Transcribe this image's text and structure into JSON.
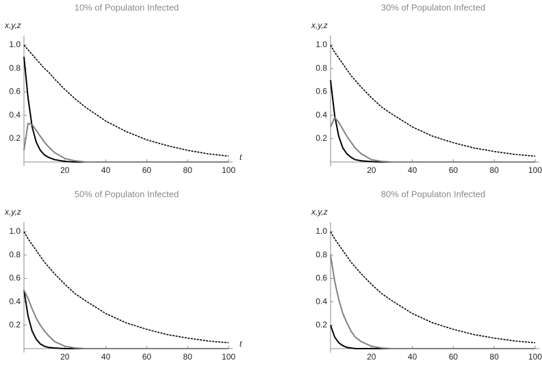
{
  "chart_data": [
    {
      "type": "line",
      "title": "10% of Populaton Infected",
      "ylabel": "x,y,z",
      "xlabel": "t",
      "x": [
        0,
        2,
        4,
        6,
        8,
        10,
        12,
        15,
        20,
        25,
        30,
        40,
        50,
        60,
        70,
        80,
        90,
        100
      ],
      "series": [
        {
          "color": "#000000",
          "dashed": true,
          "values": [
            1.0,
            0.96,
            0.92,
            0.88,
            0.84,
            0.8,
            0.77,
            0.71,
            0.62,
            0.54,
            0.47,
            0.35,
            0.26,
            0.19,
            0.14,
            0.1,
            0.07,
            0.05
          ]
        },
        {
          "color": "#000000",
          "dashed": false,
          "values": [
            0.9,
            0.55,
            0.3,
            0.17,
            0.1,
            0.06,
            0.04,
            0.02,
            0.005,
            0,
            0,
            0,
            0,
            0,
            0,
            0,
            0,
            0
          ]
        },
        {
          "color": "#808080",
          "dashed": false,
          "values": [
            0.1,
            0.33,
            0.32,
            0.27,
            0.22,
            0.17,
            0.13,
            0.08,
            0.03,
            0.01,
            0,
            0,
            0,
            0,
            0,
            0,
            0,
            0
          ]
        }
      ],
      "xlim": [
        0,
        100
      ],
      "ylim": [
        0,
        1.05
      ],
      "xticks": [
        20,
        40,
        60,
        80,
        100
      ],
      "yticks": [
        0.2,
        0.4,
        0.6,
        0.8,
        {
          "value": 1,
          "label": "1.0"
        }
      ]
    },
    {
      "type": "line",
      "title": "30% of Populaton Infected",
      "ylabel": "x,y,z",
      "x": [
        0,
        2,
        4,
        6,
        8,
        10,
        12,
        15,
        20,
        25,
        30,
        40,
        50,
        60,
        70,
        80,
        90,
        100
      ],
      "series": [
        {
          "color": "#000000",
          "dashed": true,
          "values": [
            1.0,
            0.94,
            0.89,
            0.84,
            0.79,
            0.74,
            0.7,
            0.64,
            0.55,
            0.47,
            0.41,
            0.3,
            0.22,
            0.165,
            0.12,
            0.09,
            0.065,
            0.05
          ]
        },
        {
          "color": "#000000",
          "dashed": false,
          "values": [
            0.7,
            0.4,
            0.22,
            0.12,
            0.07,
            0.04,
            0.02,
            0.01,
            0.003,
            0,
            0,
            0,
            0,
            0,
            0,
            0,
            0,
            0
          ]
        },
        {
          "color": "#808080",
          "dashed": false,
          "values": [
            0.3,
            0.38,
            0.34,
            0.28,
            0.22,
            0.17,
            0.12,
            0.07,
            0.02,
            0.005,
            0,
            0,
            0,
            0,
            0,
            0,
            0,
            0
          ]
        }
      ],
      "xlim": [
        0,
        100
      ],
      "ylim": [
        0,
        1.05
      ],
      "xticks": [
        20,
        40,
        60,
        80,
        100
      ],
      "yticks": [
        0.2,
        0.4,
        0.6,
        0.8,
        {
          "value": 1,
          "label": "1.0"
        }
      ]
    },
    {
      "type": "line",
      "title": "50% of Populaton Infected",
      "ylabel": "x,y,z",
      "xlabel": "t",
      "x": [
        0,
        2,
        4,
        6,
        8,
        10,
        12,
        15,
        20,
        25,
        30,
        40,
        50,
        60,
        70,
        80,
        90,
        100
      ],
      "series": [
        {
          "color": "#000000",
          "dashed": true,
          "values": [
            1.0,
            0.94,
            0.89,
            0.84,
            0.79,
            0.74,
            0.7,
            0.64,
            0.55,
            0.47,
            0.41,
            0.3,
            0.22,
            0.165,
            0.12,
            0.09,
            0.065,
            0.05
          ]
        },
        {
          "color": "#000000",
          "dashed": false,
          "values": [
            0.5,
            0.28,
            0.15,
            0.08,
            0.04,
            0.02,
            0.01,
            0.005,
            0,
            0,
            0,
            0,
            0,
            0,
            0,
            0,
            0,
            0
          ]
        },
        {
          "color": "#808080",
          "dashed": false,
          "values": [
            0.5,
            0.43,
            0.34,
            0.26,
            0.2,
            0.15,
            0.11,
            0.06,
            0.02,
            0.005,
            0,
            0,
            0,
            0,
            0,
            0,
            0,
            0
          ]
        }
      ],
      "xlim": [
        0,
        100
      ],
      "ylim": [
        0,
        1.05
      ],
      "xticks": [
        20,
        40,
        60,
        80,
        100
      ],
      "yticks": [
        0.2,
        0.4,
        0.6,
        0.8,
        {
          "value": 1,
          "label": "1.0"
        }
      ]
    },
    {
      "type": "line",
      "title": "80% of Populaton Infected",
      "ylabel": "x,y,z",
      "x": [
        0,
        2,
        4,
        6,
        8,
        10,
        12,
        15,
        20,
        25,
        30,
        40,
        50,
        60,
        70,
        80,
        90,
        100
      ],
      "series": [
        {
          "color": "#000000",
          "dashed": true,
          "values": [
            1.0,
            0.94,
            0.89,
            0.84,
            0.79,
            0.74,
            0.7,
            0.64,
            0.55,
            0.47,
            0.41,
            0.3,
            0.22,
            0.165,
            0.12,
            0.09,
            0.065,
            0.05
          ]
        },
        {
          "color": "#000000",
          "dashed": false,
          "values": [
            0.2,
            0.1,
            0.05,
            0.025,
            0.01,
            0.005,
            0,
            0,
            0,
            0,
            0,
            0,
            0,
            0,
            0,
            0,
            0,
            0
          ]
        },
        {
          "color": "#808080",
          "dashed": false,
          "values": [
            0.8,
            0.58,
            0.42,
            0.3,
            0.22,
            0.15,
            0.1,
            0.06,
            0.02,
            0.005,
            0,
            0,
            0,
            0,
            0,
            0,
            0,
            0
          ]
        }
      ],
      "xlim": [
        0,
        100
      ],
      "ylim": [
        0,
        1.05
      ],
      "xticks": [
        20,
        40,
        60,
        80,
        100
      ],
      "yticks": [
        0.2,
        0.4,
        0.6,
        0.8,
        {
          "value": 1,
          "label": "1.0"
        }
      ]
    }
  ]
}
